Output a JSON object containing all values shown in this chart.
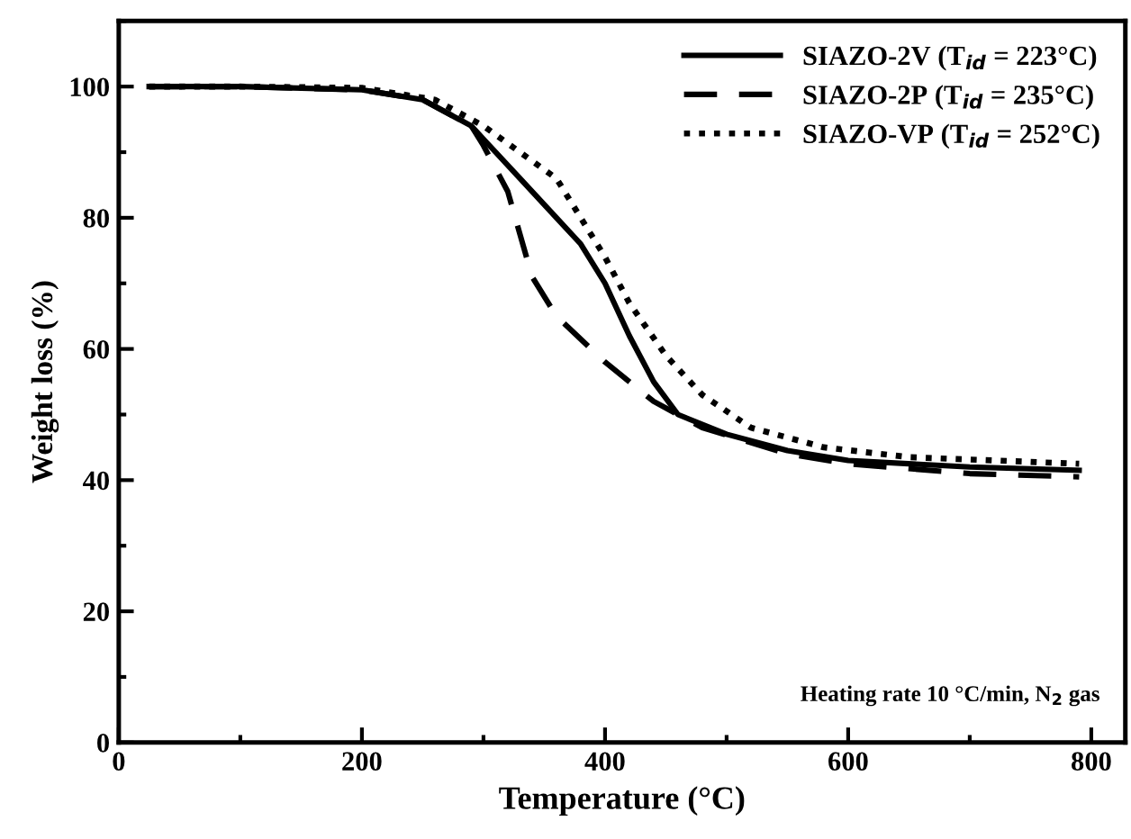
{
  "chart_data": {
    "type": "line",
    "xlabel": "Temperature (°C)",
    "ylabel": "Weight loss (%)",
    "xlim": [
      0,
      828
    ],
    "ylim": [
      0,
      110
    ],
    "xticks": [
      0,
      200,
      400,
      600,
      800
    ],
    "yticks": [
      0,
      20,
      40,
      60,
      80,
      100
    ],
    "grid": false,
    "legend": "top right",
    "marker": "none",
    "annotations": [
      "Heating rate 10 °C/min, N$_{2}$ gas"
    ],
    "series": [
      {
        "name": "SIAZO-2V (T$_{id}$ = 223°C)",
        "color": "#000000",
        "line_style": "solid",
        "x": [
          25,
          100,
          200,
          250,
          290,
          300,
          330,
          360,
          380,
          400,
          420,
          440,
          460,
          500,
          550,
          600,
          700,
          790
        ],
        "values": [
          100,
          100,
          99.5,
          98,
          94,
          92,
          86,
          80,
          76,
          70,
          62,
          55,
          50,
          47,
          44.5,
          43,
          42,
          41.5
        ]
      },
      {
        "name": "SIAZO-2P (T$_{id}$ = 235°C)",
        "color": "#000000",
        "line_style": "dashed",
        "x": [
          25,
          100,
          200,
          250,
          290,
          300,
          320,
          340,
          360,
          400,
          440,
          480,
          550,
          600,
          700,
          790
        ],
        "values": [
          100,
          100,
          99.5,
          98,
          94,
          91,
          84,
          71,
          65,
          58,
          52,
          48,
          44,
          42.5,
          41,
          40.5
        ]
      },
      {
        "name": "SIAZO-VP (T$_{id}$ = 252°C)",
        "color": "#000000",
        "line_style": "dotted",
        "x": [
          25,
          100,
          200,
          260,
          300,
          330,
          360,
          380,
          400,
          420,
          450,
          480,
          520,
          580,
          650,
          790
        ],
        "values": [
          100,
          100,
          99.8,
          98,
          94,
          90,
          86,
          80,
          74,
          67,
          59,
          53,
          48,
          45,
          43.5,
          42.5
        ]
      }
    ]
  }
}
